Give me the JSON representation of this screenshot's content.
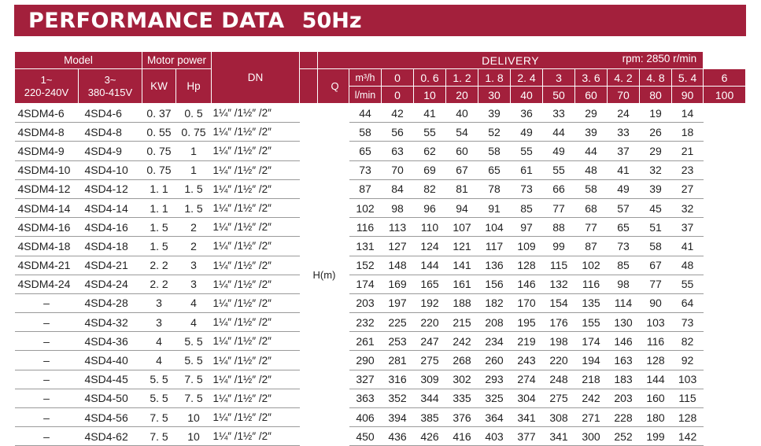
{
  "title": "PERFORMANCE DATA",
  "frequency": "50Hz",
  "headers": {
    "model": "Model",
    "motor_power": "Motor  power",
    "dn": "DN",
    "delivery": "DELIVERY",
    "rpm": "rpm:   2850 r/min",
    "single_phase": "1~",
    "single_phase_voltage": "220-240V",
    "three_phase": "3~",
    "three_phase_voltage": "380-415V",
    "kw": "KW",
    "hp": "Hp",
    "q": "Q",
    "m3h_unit": "m³/h",
    "lmin_unit": "l/min",
    "h_label": "H(m)"
  },
  "flow_m3h": [
    "0",
    "0. 6",
    "1. 2",
    "1. 8",
    "2. 4",
    "3",
    "3. 6",
    "4. 2",
    "4. 8",
    "5. 4",
    "6"
  ],
  "flow_lmin": [
    "0",
    "10",
    "20",
    "30",
    "40",
    "50",
    "60",
    "70",
    "80",
    "90",
    "100"
  ],
  "rows": [
    {
      "m1": "4SDM4-6",
      "m3": "4SD4-6",
      "kw": "0. 37",
      "hp": "0. 5",
      "dn": "1¼″ /1½″ /2″",
      "h": [
        "44",
        "42",
        "41",
        "40",
        "39",
        "36",
        "33",
        "29",
        "24",
        "19",
        "14"
      ]
    },
    {
      "m1": "4SDM4-8",
      "m3": "4SD4-8",
      "kw": "0. 55",
      "hp": "0. 75",
      "dn": "1¼″ /1½″ /2″",
      "h": [
        "58",
        "56",
        "55",
        "54",
        "52",
        "49",
        "44",
        "39",
        "33",
        "26",
        "18"
      ]
    },
    {
      "m1": "4SDM4-9",
      "m3": "4SD4-9",
      "kw": "0. 75",
      "hp": "1",
      "dn": "1¼″ /1½″ /2″",
      "h": [
        "65",
        "63",
        "62",
        "60",
        "58",
        "55",
        "49",
        "44",
        "37",
        "29",
        "21"
      ]
    },
    {
      "m1": "4SDM4-10",
      "m3": "4SD4-10",
      "kw": "0. 75",
      "hp": "1",
      "dn": "1¼″ /1½″ /2″",
      "h": [
        "73",
        "70",
        "69",
        "67",
        "65",
        "61",
        "55",
        "48",
        "41",
        "32",
        "23"
      ]
    },
    {
      "m1": "4SDM4-12",
      "m3": "4SD4-12",
      "kw": "1. 1",
      "hp": "1. 5",
      "dn": "1¼″ /1½″ /2″",
      "h": [
        "87",
        "84",
        "82",
        "81",
        "78",
        "73",
        "66",
        "58",
        "49",
        "39",
        "27"
      ]
    },
    {
      "m1": "4SDM4-14",
      "m3": "4SD4-14",
      "kw": "1. 1",
      "hp": "1. 5",
      "dn": "1¼″ /1½″ /2″",
      "h": [
        "102",
        "98",
        "96",
        "94",
        "91",
        "85",
        "77",
        "68",
        "57",
        "45",
        "32"
      ]
    },
    {
      "m1": "4SDM4-16",
      "m3": "4SD4-16",
      "kw": "1. 5",
      "hp": "2",
      "dn": "1¼″ /1½″ /2″",
      "h": [
        "116",
        "113",
        "110",
        "107",
        "104",
        "97",
        "88",
        "77",
        "65",
        "51",
        "37"
      ]
    },
    {
      "m1": "4SDM4-18",
      "m3": "4SD4-18",
      "kw": "1. 5",
      "hp": "2",
      "dn": "1¼″ /1½″ /2″",
      "h": [
        "131",
        "127",
        "124",
        "121",
        "117",
        "109",
        "99",
        "87",
        "73",
        "58",
        "41"
      ]
    },
    {
      "m1": "4SDM4-21",
      "m3": "4SD4-21",
      "kw": "2. 2",
      "hp": "3",
      "dn": "1¼″ /1½″ /2″",
      "h": [
        "152",
        "148",
        "144",
        "141",
        "136",
        "128",
        "115",
        "102",
        "85",
        "67",
        "48"
      ]
    },
    {
      "m1": "4SDM4-24",
      "m3": "4SD4-24",
      "kw": "2. 2",
      "hp": "3",
      "dn": "1¼″ /1½″ /2″",
      "h": [
        "174",
        "169",
        "165",
        "161",
        "156",
        "146",
        "132",
        "116",
        "98",
        "77",
        "55"
      ]
    },
    {
      "m1": "–",
      "m3": "4SD4-28",
      "kw": "3",
      "hp": "4",
      "dn": "1¼″ /1½″ /2″",
      "h": [
        "203",
        "197",
        "192",
        "188",
        "182",
        "170",
        "154",
        "135",
        "114",
        "90",
        "64"
      ]
    },
    {
      "m1": "–",
      "m3": "4SD4-32",
      "kw": "3",
      "hp": "4",
      "dn": "1¼″ /1½″ /2″",
      "h": [
        "232",
        "225",
        "220",
        "215",
        "208",
        "195",
        "176",
        "155",
        "130",
        "103",
        "73"
      ]
    },
    {
      "m1": "–",
      "m3": "4SD4-36",
      "kw": "4",
      "hp": "5. 5",
      "dn": "1¼″ /1½″ /2″",
      "h": [
        "261",
        "253",
        "247",
        "242",
        "234",
        "219",
        "198",
        "174",
        "146",
        "116",
        "82"
      ]
    },
    {
      "m1": "–",
      "m3": "4SD4-40",
      "kw": "4",
      "hp": "5. 5",
      "dn": "1¼″ /1½″ /2″",
      "h": [
        "290",
        "281",
        "275",
        "268",
        "260",
        "243",
        "220",
        "194",
        "163",
        "128",
        "92"
      ]
    },
    {
      "m1": "–",
      "m3": "4SD4-45",
      "kw": "5. 5",
      "hp": "7. 5",
      "dn": "1¼″ /1½″ /2″",
      "h": [
        "327",
        "316",
        "309",
        "302",
        "293",
        "274",
        "248",
        "218",
        "183",
        "144",
        "103"
      ]
    },
    {
      "m1": "–",
      "m3": "4SD4-50",
      "kw": "5. 5",
      "hp": "7. 5",
      "dn": "1¼″ /1½″ /2″",
      "h": [
        "363",
        "352",
        "344",
        "335",
        "325",
        "304",
        "275",
        "242",
        "203",
        "160",
        "115"
      ]
    },
    {
      "m1": "–",
      "m3": "4SD4-56",
      "kw": "7. 5",
      "hp": "10",
      "dn": "1¼″ /1½″ /2″",
      "h": [
        "406",
        "394",
        "385",
        "376",
        "364",
        "341",
        "308",
        "271",
        "228",
        "180",
        "128"
      ]
    },
    {
      "m1": "–",
      "m3": "4SD4-62",
      "kw": "7. 5",
      "hp": "10",
      "dn": "1¼″ /1½″ /2″",
      "h": [
        "450",
        "436",
        "426",
        "416",
        "403",
        "377",
        "341",
        "300",
        "252",
        "199",
        "142"
      ]
    }
  ]
}
